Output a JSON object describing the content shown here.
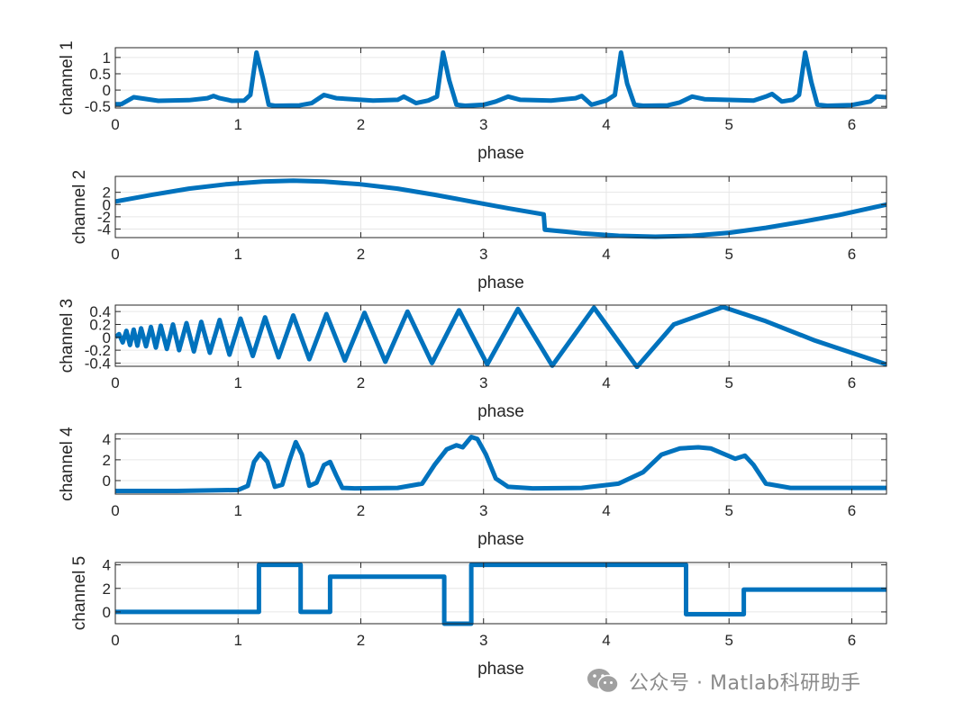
{
  "watermark": {
    "text": "公众号 · Matlab科研助手",
    "icon": "wechat-icon"
  },
  "colors": {
    "series": "#0072bd",
    "axis": "#262626",
    "grid": "#e6e6e6",
    "watermark": "#8a8a8a"
  },
  "chart_data": [
    {
      "type": "line",
      "ylabel": "channel 1",
      "xlabel": "phase",
      "xlim": [
        0,
        6.283
      ],
      "ylim": [
        -0.55,
        1.3
      ],
      "xticks": [
        0,
        1,
        2,
        3,
        4,
        5,
        6
      ],
      "yticks": [
        -0.5,
        0,
        0.5,
        1
      ],
      "ytick_labels": [
        "-0.5",
        "0",
        "0.5",
        "1"
      ],
      "grid": true,
      "series": [
        {
          "x": [
            0,
            0.05,
            0.15,
            0.35,
            0.6,
            0.75,
            0.8,
            0.85,
            0.95,
            1.05,
            1.1,
            1.15,
            1.2,
            1.25,
            1.3,
            1.5,
            1.6,
            1.7,
            1.8,
            2.1,
            2.3,
            2.35,
            2.45,
            2.55,
            2.62,
            2.67,
            2.72,
            2.78,
            2.85,
            3.0,
            3.1,
            3.2,
            3.3,
            3.55,
            3.75,
            3.8,
            3.88,
            4.0,
            4.07,
            4.12,
            4.17,
            4.23,
            4.3,
            4.5,
            4.6,
            4.7,
            4.8,
            5.2,
            5.3,
            5.35,
            5.43,
            5.52,
            5.57,
            5.62,
            5.67,
            5.72,
            5.8,
            6.0,
            6.15,
            6.2,
            6.283
          ],
          "y": [
            -0.43,
            -0.43,
            -0.22,
            -0.33,
            -0.31,
            -0.25,
            -0.18,
            -0.25,
            -0.33,
            -0.32,
            -0.15,
            1.15,
            0.4,
            -0.45,
            -0.48,
            -0.47,
            -0.4,
            -0.15,
            -0.25,
            -0.32,
            -0.3,
            -0.2,
            -0.4,
            -0.32,
            -0.2,
            1.15,
            0.3,
            -0.45,
            -0.48,
            -0.45,
            -0.35,
            -0.2,
            -0.3,
            -0.32,
            -0.25,
            -0.18,
            -0.45,
            -0.32,
            -0.15,
            1.15,
            0.2,
            -0.45,
            -0.48,
            -0.47,
            -0.38,
            -0.2,
            -0.28,
            -0.32,
            -0.2,
            -0.12,
            -0.35,
            -0.3,
            -0.15,
            1.15,
            0.25,
            -0.45,
            -0.48,
            -0.46,
            -0.35,
            -0.2,
            -0.22
          ]
        }
      ]
    },
    {
      "type": "line",
      "ylabel": "channel 2",
      "xlabel": "phase",
      "xlim": [
        0,
        6.283
      ],
      "ylim": [
        -5.4,
        4.6
      ],
      "xticks": [
        0,
        1,
        2,
        3,
        4,
        5,
        6
      ],
      "yticks": [
        -4,
        -2,
        0,
        2
      ],
      "ytick_labels": [
        "-4",
        "-2",
        "0",
        "2"
      ],
      "grid": true,
      "series": [
        {
          "x": [
            0,
            0.3,
            0.6,
            0.9,
            1.2,
            1.45,
            1.7,
            2.0,
            2.3,
            2.6,
            2.9,
            3.2,
            3.49,
            3.5,
            3.8,
            4.1,
            4.4,
            4.7,
            5.0,
            5.3,
            5.6,
            5.9,
            6.283
          ],
          "y": [
            0.5,
            1.6,
            2.6,
            3.3,
            3.75,
            3.9,
            3.75,
            3.3,
            2.6,
            1.6,
            0.5,
            -0.6,
            -1.6,
            -4.1,
            -4.7,
            -5.1,
            -5.25,
            -5.1,
            -4.6,
            -3.8,
            -2.8,
            -1.7,
            0.0
          ]
        }
      ]
    },
    {
      "type": "line",
      "ylabel": "channel 3",
      "xlabel": "phase",
      "xlim": [
        0,
        6.283
      ],
      "ylim": [
        -0.45,
        0.5
      ],
      "xticks": [
        0,
        1,
        2,
        3,
        4,
        5,
        6
      ],
      "yticks": [
        -0.4,
        -0.2,
        0,
        0.2,
        0.4
      ],
      "ytick_labels": [
        "-0.4",
        "-0.2",
        "0",
        "0.2",
        "0.4"
      ],
      "grid": true,
      "series": [
        {
          "x": [
            0,
            0.03,
            0.06,
            0.09,
            0.12,
            0.15,
            0.18,
            0.21,
            0.25,
            0.29,
            0.33,
            0.37,
            0.42,
            0.47,
            0.52,
            0.58,
            0.64,
            0.7,
            0.77,
            0.85,
            0.93,
            1.02,
            1.12,
            1.22,
            1.33,
            1.45,
            1.58,
            1.72,
            1.87,
            2.03,
            2.2,
            2.38,
            2.58,
            2.8,
            3.03,
            3.28,
            3.56,
            3.9,
            4.25,
            4.55,
            4.95,
            5.3,
            5.7,
            6.283
          ],
          "y": [
            0,
            0.05,
            -0.08,
            0.1,
            -0.12,
            0.12,
            -0.13,
            0.14,
            -0.14,
            0.16,
            -0.16,
            0.18,
            -0.18,
            0.2,
            -0.2,
            0.22,
            -0.22,
            0.24,
            -0.24,
            0.27,
            -0.27,
            0.29,
            -0.29,
            0.31,
            -0.31,
            0.34,
            -0.34,
            0.36,
            -0.36,
            0.38,
            -0.38,
            0.4,
            -0.4,
            0.42,
            -0.42,
            0.44,
            -0.44,
            0.46,
            -0.46,
            0.2,
            0.47,
            0.25,
            -0.05,
            -0.42
          ]
        }
      ]
    },
    {
      "type": "line",
      "ylabel": "channel 4",
      "xlabel": "phase",
      "xlim": [
        0,
        6.283
      ],
      "ylim": [
        -1.3,
        4.5
      ],
      "xticks": [
        0,
        1,
        2,
        3,
        4,
        5,
        6
      ],
      "yticks": [
        0,
        2,
        4
      ],
      "ytick_labels": [
        "0",
        "2",
        "4"
      ],
      "grid": true,
      "series": [
        {
          "x": [
            0,
            0.5,
            1.0,
            1.08,
            1.13,
            1.18,
            1.24,
            1.3,
            1.36,
            1.42,
            1.47,
            1.52,
            1.58,
            1.64,
            1.7,
            1.75,
            1.8,
            1.85,
            1.95,
            2.3,
            2.5,
            2.6,
            2.7,
            2.78,
            2.83,
            2.9,
            2.95,
            3.02,
            3.1,
            3.2,
            3.4,
            3.8,
            4.1,
            4.3,
            4.45,
            4.6,
            4.75,
            4.85,
            4.95,
            5.05,
            5.13,
            5.2,
            5.3,
            5.5,
            6.283
          ],
          "y": [
            -1.0,
            -1.0,
            -0.9,
            -0.5,
            1.8,
            2.6,
            1.8,
            -0.6,
            -0.4,
            2.0,
            3.7,
            2.5,
            -0.5,
            -0.2,
            1.5,
            1.8,
            0.5,
            -0.7,
            -0.75,
            -0.7,
            -0.3,
            1.5,
            3.0,
            3.4,
            3.2,
            4.2,
            4.0,
            2.5,
            0.2,
            -0.6,
            -0.75,
            -0.7,
            -0.3,
            0.8,
            2.5,
            3.1,
            3.2,
            3.1,
            2.6,
            2.1,
            2.4,
            1.5,
            -0.3,
            -0.7,
            -0.7
          ]
        }
      ]
    },
    {
      "type": "line",
      "ylabel": "channel 5",
      "xlabel": "phase",
      "xlim": [
        0,
        6.283
      ],
      "ylim": [
        -1.0,
        4.2
      ],
      "xticks": [
        0,
        1,
        2,
        3,
        4,
        5,
        6
      ],
      "yticks": [
        0,
        2,
        4
      ],
      "ytick_labels": [
        "0",
        "2",
        "4"
      ],
      "grid": true,
      "series": [
        {
          "x": [
            0,
            1.17,
            1.17,
            1.51,
            1.51,
            1.75,
            1.75,
            2.68,
            2.68,
            2.9,
            2.9,
            4.65,
            4.65,
            5.12,
            5.12,
            6.283
          ],
          "y": [
            0,
            0,
            4,
            4,
            0,
            0,
            3,
            3,
            -1,
            -1,
            4,
            4,
            -0.2,
            -0.2,
            1.9,
            1.9
          ]
        }
      ]
    }
  ]
}
